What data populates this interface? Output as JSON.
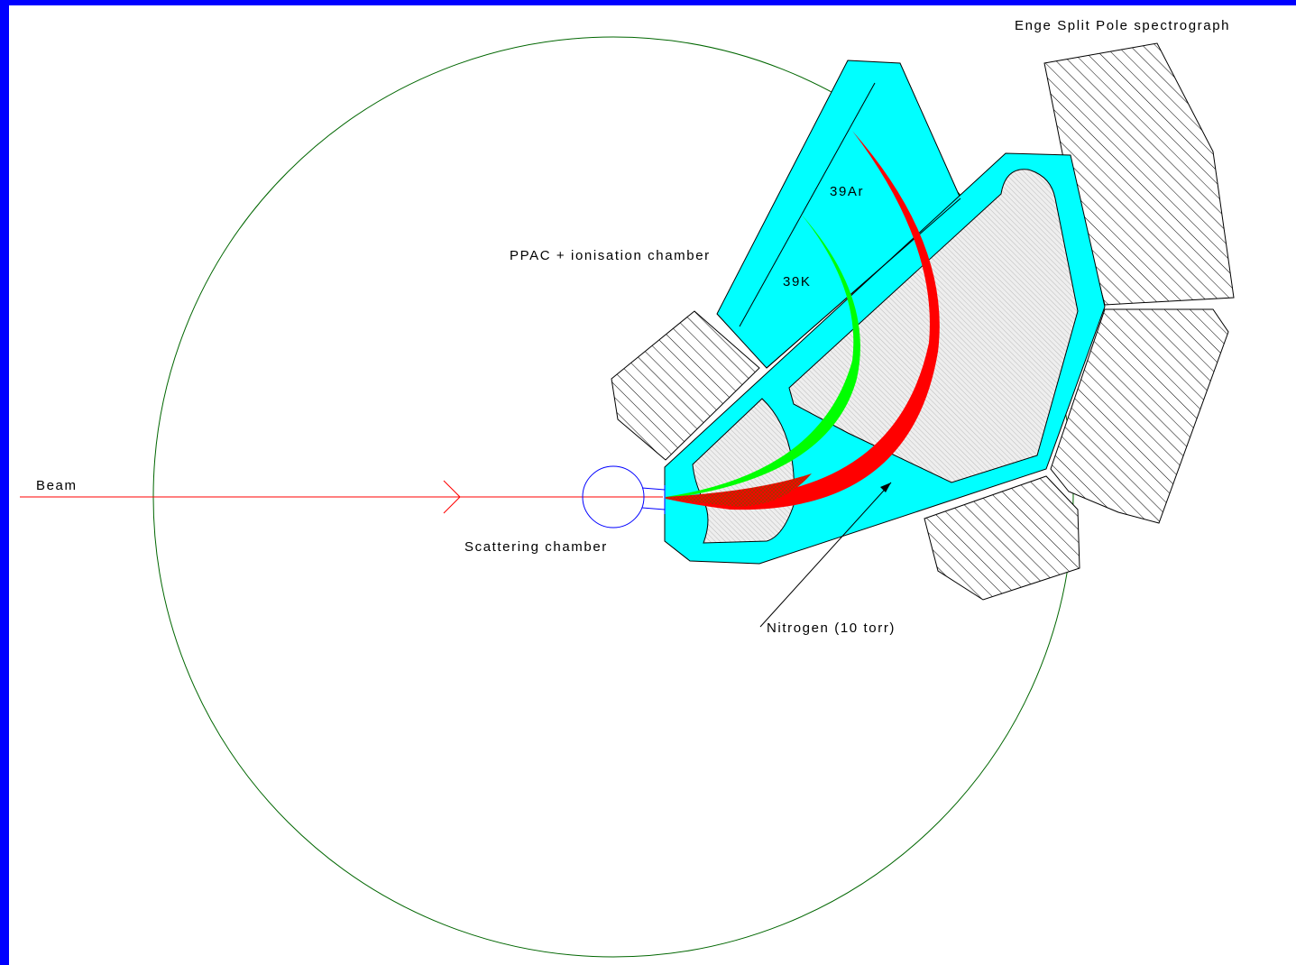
{
  "labels": {
    "spectrograph": "Enge Split Pole spectrograph",
    "ppac": "PPAC + ionisation chamber",
    "argon": "39Ar",
    "potassium": "39K",
    "beam": "Beam",
    "scattering": "Scattering chamber",
    "nitrogen": "Nitrogen (10 torr)"
  }
}
